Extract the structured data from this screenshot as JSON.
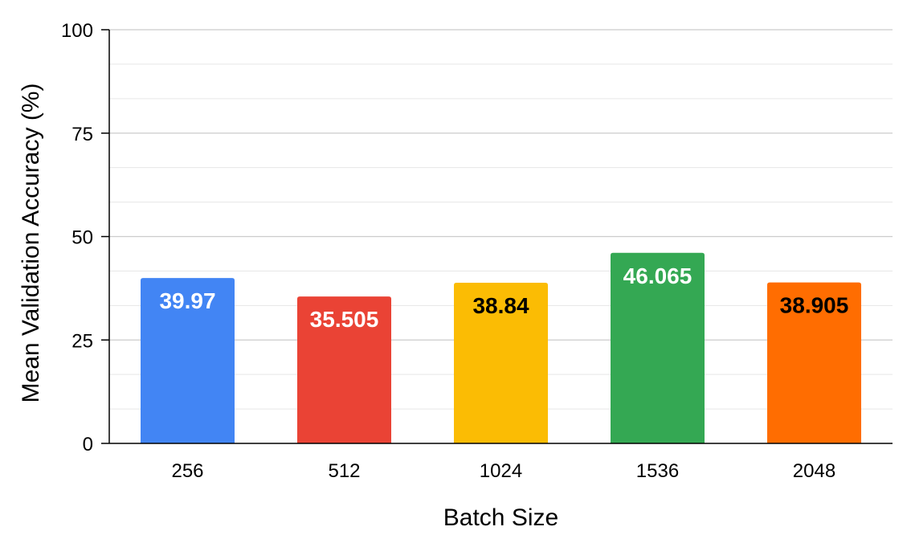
{
  "chart_data": {
    "type": "bar",
    "title": "",
    "xlabel": "Batch Size",
    "ylabel": "Mean Validation Accuracy (%)",
    "categories": [
      "256",
      "512",
      "1024",
      "1536",
      "2048"
    ],
    "values": [
      39.97,
      35.505,
      38.84,
      46.065,
      38.905
    ],
    "value_labels": [
      "39.97",
      "35.505",
      "38.84",
      "46.065",
      "38.905"
    ],
    "ylim": [
      0,
      100
    ],
    "yticks": [
      0,
      25,
      50,
      75,
      100
    ],
    "ytick_labels": [
      "0",
      "25",
      "50",
      "75",
      "100"
    ],
    "minor_gridlines_per_major": 2,
    "grid": true,
    "legend": "none",
    "bar_colors": [
      "#4285F4",
      "#EA4335",
      "#FBBC04",
      "#34A853",
      "#FF6D01"
    ],
    "label_colors": [
      "#FFFFFF",
      "#FFFFFF",
      "#000000",
      "#FFFFFF",
      "#000000"
    ],
    "gridline_color": "#CCCCCC",
    "minor_gridline_color": "#E6E6E6"
  }
}
